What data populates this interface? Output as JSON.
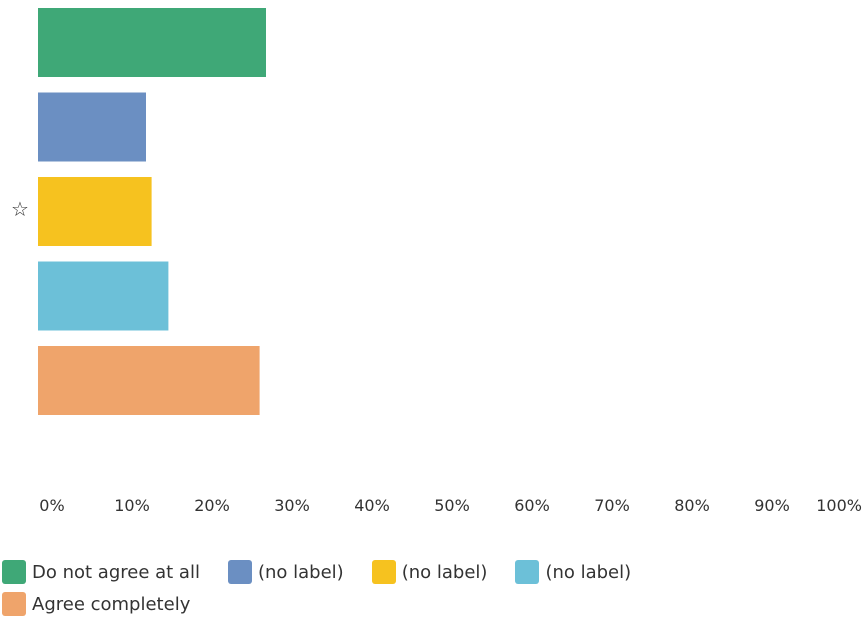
{
  "chart_data": {
    "type": "bar",
    "orientation": "horizontal",
    "series": [
      {
        "name": "Do not agree at all",
        "value": 28.5,
        "color": "#3fa877"
      },
      {
        "name": "(no label)",
        "value": 13.5,
        "color": "#6b8fc2"
      },
      {
        "name": "(no label)",
        "value": 14.2,
        "color": "#f6c21f"
      },
      {
        "name": "(no label)",
        "value": 16.3,
        "color": "#6cc0d8"
      },
      {
        "name": "Agree completely",
        "value": 27.7,
        "color": "#efa46b"
      }
    ],
    "xlim": [
      0,
      100
    ],
    "x_ticks": [
      "0%",
      "10%",
      "20%",
      "30%",
      "40%",
      "50%",
      "60%",
      "70%",
      "80%",
      "90%",
      "100%"
    ],
    "grid": false,
    "legend_position": "bottom",
    "marker": {
      "symbol": "☆",
      "series_index": 2
    }
  },
  "legend": {
    "items": [
      {
        "label": "Do not agree at all",
        "color": "#3fa877"
      },
      {
        "label": "(no label)",
        "color": "#6b8fc2"
      },
      {
        "label": "(no label)",
        "color": "#f6c21f"
      },
      {
        "label": "(no label)",
        "color": "#6cc0d8"
      },
      {
        "label": "Agree completely",
        "color": "#efa46b"
      }
    ]
  }
}
